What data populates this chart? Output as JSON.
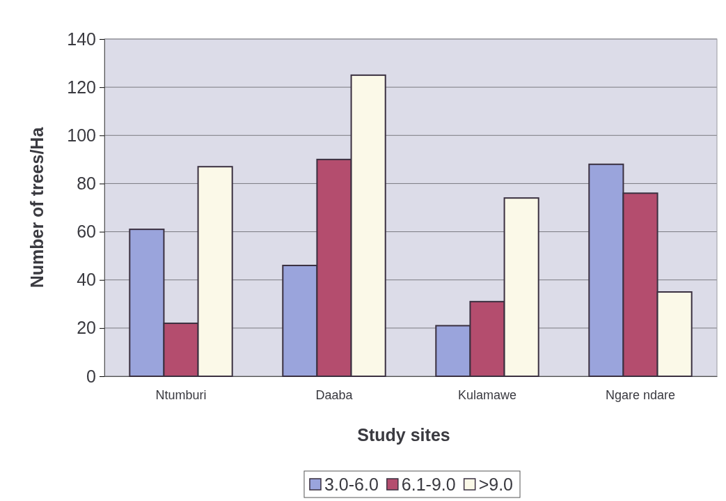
{
  "chart_data": {
    "type": "bar",
    "xlabel": "Study sites",
    "ylabel": "Number of trees/Ha",
    "categories": [
      "Ntumburi",
      "Daaba",
      "Kulamawe",
      "Ngare ndare"
    ],
    "series": [
      {
        "name": "3.0-6.0",
        "color": "#9aa4dc",
        "values": [
          61,
          46,
          21,
          88
        ]
      },
      {
        "name": "6.1-9.0",
        "color": "#b44d6e",
        "values": [
          22,
          90,
          31,
          76
        ]
      },
      {
        "name": ">9.0",
        "color": "#fbf9e8",
        "values": [
          87,
          125,
          74,
          35
        ]
      }
    ],
    "ylim": [
      0,
      140
    ],
    "yticks": [
      0,
      20,
      40,
      60,
      80,
      100,
      120,
      140
    ],
    "grid": "y",
    "legend": "bottom"
  }
}
